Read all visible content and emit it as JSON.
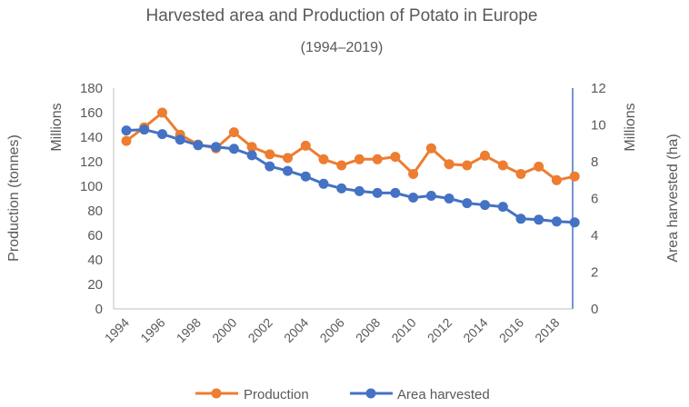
{
  "chart_data": {
    "type": "line",
    "title": "Harvested area and Production of Potato in Europe",
    "subtitle": "(1994‒2019)",
    "x": [
      1994,
      1995,
      1996,
      1997,
      1998,
      1999,
      2000,
      2001,
      2002,
      2003,
      2004,
      2005,
      2006,
      2007,
      2008,
      2009,
      2010,
      2011,
      2012,
      2013,
      2014,
      2015,
      2016,
      2017,
      2018,
      2019
    ],
    "x_tick_labels": [
      "1994",
      "1996",
      "1998",
      "2000",
      "2002",
      "2004",
      "2006",
      "2008",
      "2010",
      "2012",
      "2014",
      "2016",
      "2018"
    ],
    "y_left": {
      "label": "Production (tonnes)",
      "unit_label": "Millions",
      "range": [
        0,
        180
      ],
      "ticks": [
        "0",
        "20",
        "40",
        "60",
        "80",
        "100",
        "120",
        "140",
        "160",
        "180"
      ]
    },
    "y_right": {
      "label": "Area harvested (ha)",
      "unit_label": "Millions",
      "range": [
        0,
        12
      ],
      "ticks": [
        "0",
        "2",
        "4",
        "6",
        "8",
        "10",
        "12"
      ]
    },
    "series": [
      {
        "name": "Production",
        "axis": "left",
        "color": "#ED7D31",
        "values": [
          137,
          148,
          160,
          142,
          134,
          131,
          144,
          132,
          126,
          123,
          133,
          122,
          117,
          122,
          122,
          124,
          110,
          131,
          118,
          117,
          125,
          117,
          110,
          116,
          105,
          108
        ]
      },
      {
        "name": "Area harvested",
        "axis": "right",
        "color": "#4472C4",
        "values": [
          9.7,
          9.75,
          9.5,
          9.2,
          8.9,
          8.8,
          8.7,
          8.35,
          7.75,
          7.5,
          7.2,
          6.8,
          6.55,
          6.4,
          6.3,
          6.3,
          6.05,
          6.15,
          6.0,
          5.75,
          5.65,
          5.55,
          4.9,
          4.85,
          4.75,
          4.7
        ]
      }
    ],
    "legend": {
      "position": "bottom",
      "entries": [
        "Production",
        "Area harvested"
      ]
    },
    "grid": false
  }
}
